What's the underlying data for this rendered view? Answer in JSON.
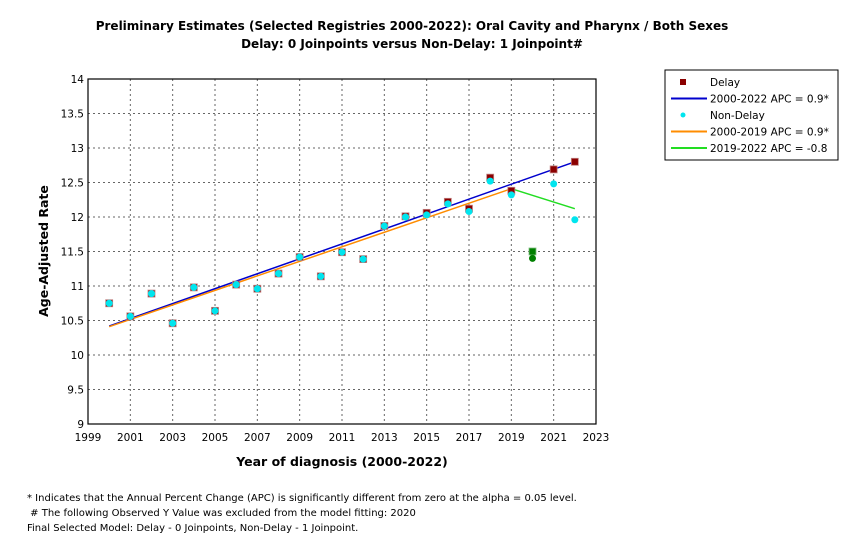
{
  "chart_data": {
    "type": "scatter",
    "title": "Preliminary Estimates (Selected Registries 2000-2022): Oral Cavity and Pharynx / Both Sexes",
    "subtitle": "Delay: 0 Joinpoints  versus  Non-Delay: 1 Joinpoint#",
    "xlabel": "Year of diagnosis (2000-2022)",
    "ylabel": "Age-Adjusted Rate",
    "xlim": [
      1999,
      2023
    ],
    "ylim": [
      9,
      14
    ],
    "x_ticks": [
      1999,
      2001,
      2003,
      2005,
      2007,
      2009,
      2011,
      2013,
      2015,
      2017,
      2019,
      2021,
      2023
    ],
    "y_ticks": [
      9,
      9.5,
      10,
      10.5,
      11,
      11.5,
      12,
      12.5,
      13,
      13.5,
      14
    ],
    "y_tick_labels": [
      "9",
      "9.5",
      "10",
      "10.5",
      "11",
      "11.5",
      "12",
      "12.5",
      "13",
      "13.5",
      "14"
    ],
    "grid": true,
    "legend_position": "top-right",
    "x": [
      2000,
      2001,
      2002,
      2003,
      2004,
      2005,
      2006,
      2007,
      2008,
      2009,
      2010,
      2011,
      2012,
      2013,
      2014,
      2015,
      2016,
      2017,
      2018,
      2019,
      2020,
      2021,
      2022
    ],
    "series": [
      {
        "name": "Delay",
        "kind": "observed",
        "marker": "square",
        "color": "#8b0000",
        "values": [
          10.75,
          10.56,
          10.89,
          10.46,
          10.98,
          10.64,
          11.02,
          10.96,
          11.18,
          11.42,
          11.14,
          11.49,
          11.39,
          11.87,
          12.01,
          12.06,
          12.22,
          12.12,
          12.57,
          12.38,
          11.5,
          12.69,
          12.8
        ]
      },
      {
        "name": "Non-Delay",
        "kind": "observed",
        "marker": "circle",
        "color": "#00e5ee",
        "values": [
          10.75,
          10.56,
          10.89,
          10.46,
          10.98,
          10.64,
          11.02,
          10.96,
          11.18,
          11.42,
          11.14,
          11.49,
          11.39,
          11.87,
          12.0,
          12.03,
          12.19,
          12.08,
          12.52,
          12.32,
          11.4,
          12.48,
          11.96
        ]
      }
    ],
    "excluded": {
      "year": 2020,
      "color": "#008000",
      "delay_value": 11.5,
      "nondelay_value": 11.4
    },
    "trend_lines": [
      {
        "label": "2000-2022 APC  = 0.9*",
        "group": "Delay",
        "color": "#0000cd",
        "x": [
          2000,
          2022
        ],
        "y": [
          10.42,
          12.8
        ]
      },
      {
        "label": "2000-2019 APC  =  0.9*",
        "group": "Non-Delay",
        "color": "#ff8c00",
        "x": [
          2000,
          2019
        ],
        "y": [
          10.41,
          12.41
        ]
      },
      {
        "label": "2019-2022 APC  = -0.8",
        "group": "Non-Delay",
        "color": "#22dd22",
        "x": [
          2019,
          2022
        ],
        "y": [
          12.41,
          12.12
        ]
      }
    ],
    "legend": [
      {
        "label": "Delay",
        "type": "square",
        "color": "#8b0000"
      },
      {
        "label": "2000-2022 APC  = 0.9*",
        "type": "line",
        "color": "#0000cd"
      },
      {
        "label": "Non-Delay",
        "type": "circle",
        "color": "#00e5ee"
      },
      {
        "label": "2000-2019 APC  =  0.9*",
        "type": "line",
        "color": "#ff8c00"
      },
      {
        "label": "2019-2022 APC  = -0.8",
        "type": "line",
        "color": "#22dd22"
      }
    ]
  },
  "footnotes": [
    "* Indicates that the Annual Percent Change (APC) is significantly different from zero at the alpha = 0.05 level.",
    " # The following Observed Y Value was excluded from the model fitting: 2020",
    "Final Selected Model: Delay - 0 Joinpoints, Non-Delay - 1 Joinpoint."
  ]
}
